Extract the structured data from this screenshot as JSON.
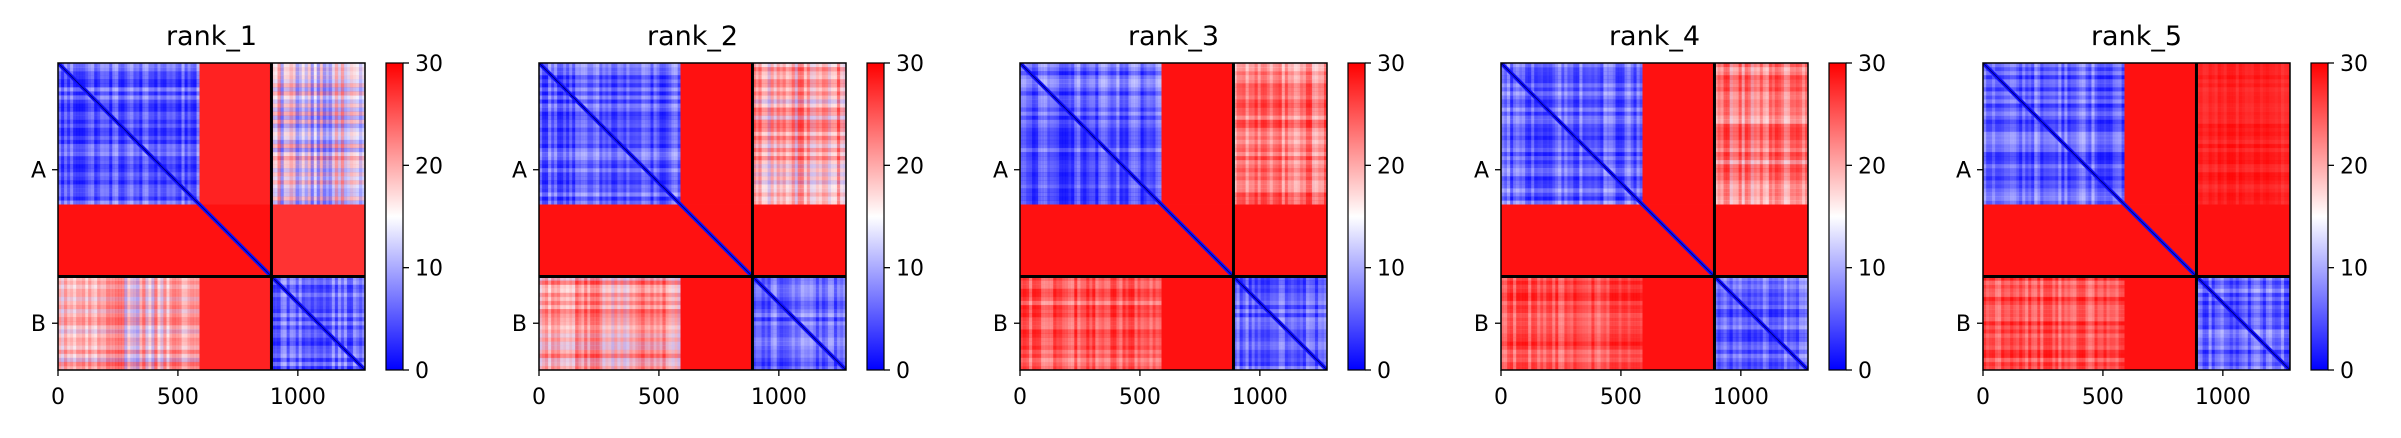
{
  "chart_data": [
    {
      "type": "heatmap",
      "title": "rank_1",
      "xlim": [
        0,
        1280
      ],
      "x_ticks": [
        0,
        500,
        1000
      ],
      "x_tick_labels": [
        "0",
        "500",
        "1000"
      ],
      "chains": [
        {
          "name": "A",
          "start": 0,
          "end": 890
        },
        {
          "name": "B",
          "start": 890,
          "end": 1280
        }
      ],
      "chain_boundary": 890,
      "colorbar": {
        "min": 0,
        "max": 30,
        "ticks": [
          0,
          10,
          20,
          30
        ],
        "tick_labels": [
          "0",
          "10",
          "20",
          "30"
        ],
        "colormap": "bwr"
      },
      "blocks": [
        {
          "x": [
            0,
            590
          ],
          "y": [
            0,
            590
          ],
          "value": 5,
          "texture": 0.6
        },
        {
          "x": [
            590,
            890
          ],
          "y": [
            0,
            590
          ],
          "value": 28
        },
        {
          "x": [
            0,
            890
          ],
          "y": [
            590,
            890
          ],
          "value": 29
        },
        {
          "x": [
            890,
            1280
          ],
          "y": [
            0,
            590
          ],
          "value": 14,
          "texture": 0.9
        },
        {
          "x": [
            890,
            1280
          ],
          "y": [
            590,
            890
          ],
          "value": 27
        },
        {
          "x": [
            0,
            590
          ],
          "y": [
            890,
            1280
          ],
          "value": 18,
          "texture": 0.8
        },
        {
          "x": [
            590,
            890
          ],
          "y": [
            890,
            1280
          ],
          "value": 28
        },
        {
          "x": [
            890,
            1280
          ],
          "y": [
            890,
            1280
          ],
          "value": 6,
          "texture": 0.5
        }
      ]
    },
    {
      "type": "heatmap",
      "title": "rank_2",
      "xlim": [
        0,
        1280
      ],
      "x_ticks": [
        0,
        500,
        1000
      ],
      "x_tick_labels": [
        "0",
        "500",
        "1000"
      ],
      "chains": [
        {
          "name": "A",
          "start": 0,
          "end": 890
        },
        {
          "name": "B",
          "start": 890,
          "end": 1280
        }
      ],
      "chain_boundary": 890,
      "colorbar": {
        "min": 0,
        "max": 30,
        "ticks": [
          0,
          10,
          20,
          30
        ],
        "tick_labels": [
          "0",
          "10",
          "20",
          "30"
        ],
        "colormap": "bwr"
      },
      "blocks": [
        {
          "x": [
            0,
            590
          ],
          "y": [
            0,
            590
          ],
          "value": 5,
          "texture": 0.6
        },
        {
          "x": [
            590,
            890
          ],
          "y": [
            0,
            590
          ],
          "value": 29
        },
        {
          "x": [
            0,
            890
          ],
          "y": [
            590,
            890
          ],
          "value": 29
        },
        {
          "x": [
            890,
            1280
          ],
          "y": [
            0,
            590
          ],
          "value": 19,
          "texture": 0.8
        },
        {
          "x": [
            890,
            1280
          ],
          "y": [
            590,
            890
          ],
          "value": 29
        },
        {
          "x": [
            0,
            590
          ],
          "y": [
            890,
            1280
          ],
          "value": 20,
          "texture": 0.7
        },
        {
          "x": [
            590,
            890
          ],
          "y": [
            890,
            1280
          ],
          "value": 29
        },
        {
          "x": [
            890,
            1280
          ],
          "y": [
            890,
            1280
          ],
          "value": 6,
          "texture": 0.5
        }
      ]
    },
    {
      "type": "heatmap",
      "title": "rank_3",
      "xlim": [
        0,
        1280
      ],
      "x_ticks": [
        0,
        500,
        1000
      ],
      "x_tick_labels": [
        "0",
        "500",
        "1000"
      ],
      "chains": [
        {
          "name": "A",
          "start": 0,
          "end": 890
        },
        {
          "name": "B",
          "start": 890,
          "end": 1280
        }
      ],
      "chain_boundary": 890,
      "colorbar": {
        "min": 0,
        "max": 30,
        "ticks": [
          0,
          10,
          20,
          30
        ],
        "tick_labels": [
          "0",
          "10",
          "20",
          "30"
        ],
        "colormap": "bwr"
      },
      "blocks": [
        {
          "x": [
            0,
            590
          ],
          "y": [
            0,
            590
          ],
          "value": 5,
          "texture": 0.6
        },
        {
          "x": [
            590,
            890
          ],
          "y": [
            0,
            590
          ],
          "value": 29
        },
        {
          "x": [
            0,
            890
          ],
          "y": [
            590,
            890
          ],
          "value": 29
        },
        {
          "x": [
            890,
            1280
          ],
          "y": [
            0,
            590
          ],
          "value": 23,
          "texture": 0.6
        },
        {
          "x": [
            890,
            1280
          ],
          "y": [
            590,
            890
          ],
          "value": 29
        },
        {
          "x": [
            0,
            590
          ],
          "y": [
            890,
            1280
          ],
          "value": 25,
          "texture": 0.5
        },
        {
          "x": [
            590,
            890
          ],
          "y": [
            890,
            1280
          ],
          "value": 29
        },
        {
          "x": [
            890,
            1280
          ],
          "y": [
            890,
            1280
          ],
          "value": 6,
          "texture": 0.5
        }
      ]
    },
    {
      "type": "heatmap",
      "title": "rank_4",
      "xlim": [
        0,
        1280
      ],
      "x_ticks": [
        0,
        500,
        1000
      ],
      "x_tick_labels": [
        "0",
        "500",
        "1000"
      ],
      "chains": [
        {
          "name": "A",
          "start": 0,
          "end": 890
        },
        {
          "name": "B",
          "start": 890,
          "end": 1280
        }
      ],
      "chain_boundary": 890,
      "colorbar": {
        "min": 0,
        "max": 30,
        "ticks": [
          0,
          10,
          20,
          30
        ],
        "tick_labels": [
          "0",
          "10",
          "20",
          "30"
        ],
        "colormap": "bwr"
      },
      "blocks": [
        {
          "x": [
            0,
            590
          ],
          "y": [
            0,
            590
          ],
          "value": 5,
          "texture": 0.6
        },
        {
          "x": [
            590,
            890
          ],
          "y": [
            0,
            590
          ],
          "value": 29
        },
        {
          "x": [
            0,
            890
          ],
          "y": [
            590,
            890
          ],
          "value": 29
        },
        {
          "x": [
            890,
            1280
          ],
          "y": [
            0,
            590
          ],
          "value": 22,
          "texture": 0.6
        },
        {
          "x": [
            890,
            1280
          ],
          "y": [
            590,
            890
          ],
          "value": 29
        },
        {
          "x": [
            0,
            590
          ],
          "y": [
            890,
            1280
          ],
          "value": 26,
          "texture": 0.5
        },
        {
          "x": [
            590,
            890
          ],
          "y": [
            890,
            1280
          ],
          "value": 29
        },
        {
          "x": [
            890,
            1280
          ],
          "y": [
            890,
            1280
          ],
          "value": 6,
          "texture": 0.5
        }
      ]
    },
    {
      "type": "heatmap",
      "title": "rank_5",
      "xlim": [
        0,
        1280
      ],
      "x_ticks": [
        0,
        500,
        1000
      ],
      "x_tick_labels": [
        "0",
        "500",
        "1000"
      ],
      "chains": [
        {
          "name": "A",
          "start": 0,
          "end": 890
        },
        {
          "name": "B",
          "start": 890,
          "end": 1280
        }
      ],
      "chain_boundary": 890,
      "colorbar": {
        "min": 0,
        "max": 30,
        "ticks": [
          0,
          10,
          20,
          30
        ],
        "tick_labels": [
          "0",
          "10",
          "20",
          "30"
        ],
        "colormap": "bwr"
      },
      "blocks": [
        {
          "x": [
            0,
            590
          ],
          "y": [
            0,
            590
          ],
          "value": 5,
          "texture": 0.6
        },
        {
          "x": [
            590,
            890
          ],
          "y": [
            0,
            590
          ],
          "value": 29
        },
        {
          "x": [
            0,
            890
          ],
          "y": [
            590,
            890
          ],
          "value": 29
        },
        {
          "x": [
            890,
            1280
          ],
          "y": [
            0,
            590
          ],
          "value": 28,
          "texture": 0.2
        },
        {
          "x": [
            890,
            1280
          ],
          "y": [
            590,
            890
          ],
          "value": 29
        },
        {
          "x": [
            0,
            590
          ],
          "y": [
            890,
            1280
          ],
          "value": 26,
          "texture": 0.5
        },
        {
          "x": [
            590,
            890
          ],
          "y": [
            890,
            1280
          ],
          "value": 29
        },
        {
          "x": [
            890,
            1280
          ],
          "y": [
            890,
            1280
          ],
          "value": 6,
          "texture": 0.5
        }
      ]
    }
  ]
}
